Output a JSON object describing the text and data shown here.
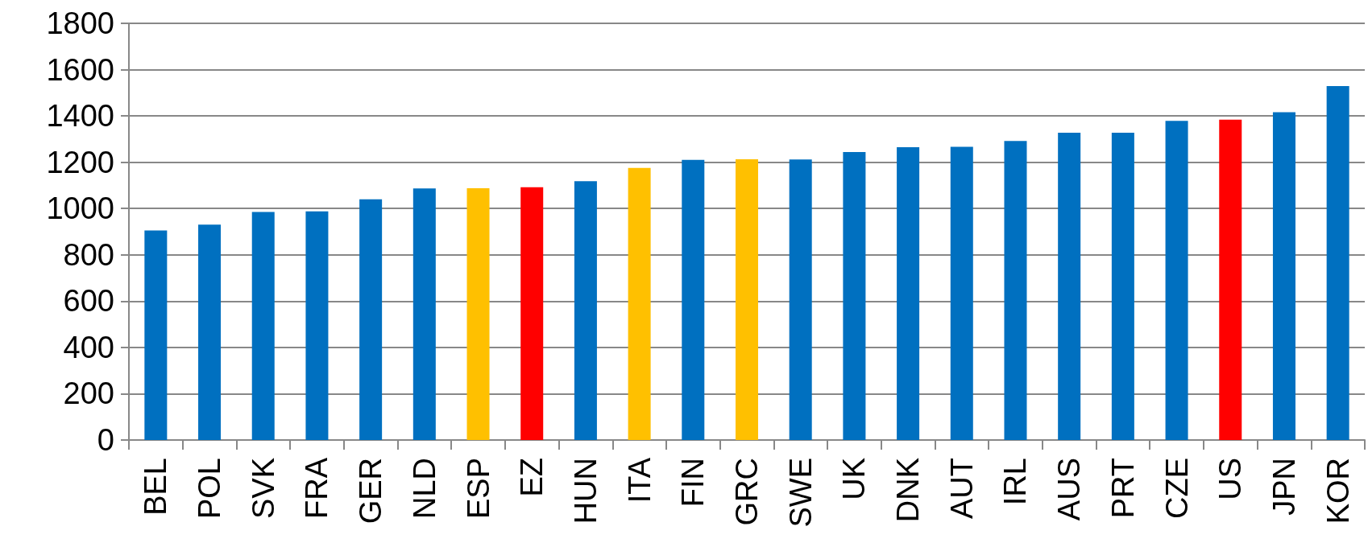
{
  "chart_data": {
    "type": "bar",
    "categories": [
      "BEL",
      "POL",
      "SVK",
      "FRA",
      "GER",
      "NLD",
      "ESP",
      "EZ",
      "HUN",
      "ITA",
      "FIN",
      "GRC",
      "SWE",
      "UK",
      "DNK",
      "AUT",
      "IRL",
      "AUS",
      "PRT",
      "CZE",
      "US",
      "JPN",
      "KOR"
    ],
    "values": [
      905,
      930,
      985,
      988,
      1040,
      1087,
      1088,
      1092,
      1118,
      1175,
      1210,
      1213,
      1212,
      1244,
      1265,
      1267,
      1292,
      1327,
      1327,
      1379,
      1384,
      1416,
      1529
    ],
    "colors": [
      "#0070c0",
      "#0070c0",
      "#0070c0",
      "#0070c0",
      "#0070c0",
      "#0070c0",
      "#ffc000",
      "#ff0000",
      "#0070c0",
      "#ffc000",
      "#0070c0",
      "#ffc000",
      "#0070c0",
      "#0070c0",
      "#0070c0",
      "#0070c0",
      "#0070c0",
      "#0070c0",
      "#0070c0",
      "#0070c0",
      "#ff0000",
      "#0070c0",
      "#0070c0"
    ],
    "ylim": [
      0,
      1800
    ],
    "yticks": [
      0,
      200,
      400,
      600,
      800,
      1000,
      1200,
      1400,
      1600,
      1800
    ],
    "grid": "y"
  }
}
